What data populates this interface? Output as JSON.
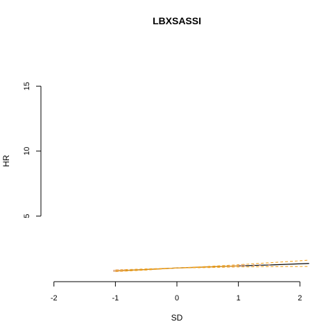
{
  "chart_data": {
    "type": "line",
    "title": "LBXSASSI",
    "xlabel": "SD",
    "ylabel": "HR",
    "xlim": [
      -2.2,
      2.2
    ],
    "ylim": [
      0,
      16.4
    ],
    "x_ticks": [
      -2,
      -1,
      0,
      1,
      2
    ],
    "y_ticks": [
      5,
      10,
      15
    ],
    "grid": false,
    "legend": "none",
    "colors": {
      "estimate": "#000000",
      "ci": "#f5a623",
      "background": "#ffffff",
      "points": "#d9a17f"
    },
    "series": [
      {
        "role": "estimate",
        "style": "solid",
        "x": [
          -1.0,
          -0.5,
          0.0,
          0.5,
          1.0,
          1.5,
          2.15
        ],
        "y": [
          0.78,
          0.88,
          1.0,
          1.08,
          1.16,
          1.23,
          1.35
        ]
      },
      {
        "role": "ci-upper",
        "style": "dashed",
        "x": [
          -1.0,
          -0.5,
          0.0,
          0.5,
          1.0,
          1.5,
          2.15
        ],
        "y": [
          0.85,
          0.93,
          1.0,
          1.12,
          1.25,
          1.4,
          1.6
        ]
      },
      {
        "role": "ci-lower",
        "style": "dashed",
        "x": [
          -1.0,
          -0.5,
          0.0,
          0.5,
          1.0,
          1.5,
          2.15
        ],
        "y": [
          0.72,
          0.84,
          1.0,
          1.03,
          1.08,
          1.1,
          1.12
        ]
      },
      {
        "role": "observations",
        "style": "points",
        "x": [
          -1.02,
          -0.98,
          -0.95,
          -0.9,
          -0.85,
          0.85,
          0.92,
          1.0,
          1.05,
          1.1,
          1.25,
          1.35,
          1.5
        ],
        "y": [
          0.78,
          0.79,
          0.8,
          0.81,
          0.82,
          1.13,
          1.15,
          1.17,
          1.18,
          1.19,
          1.21,
          1.22,
          1.24
        ]
      }
    ]
  }
}
